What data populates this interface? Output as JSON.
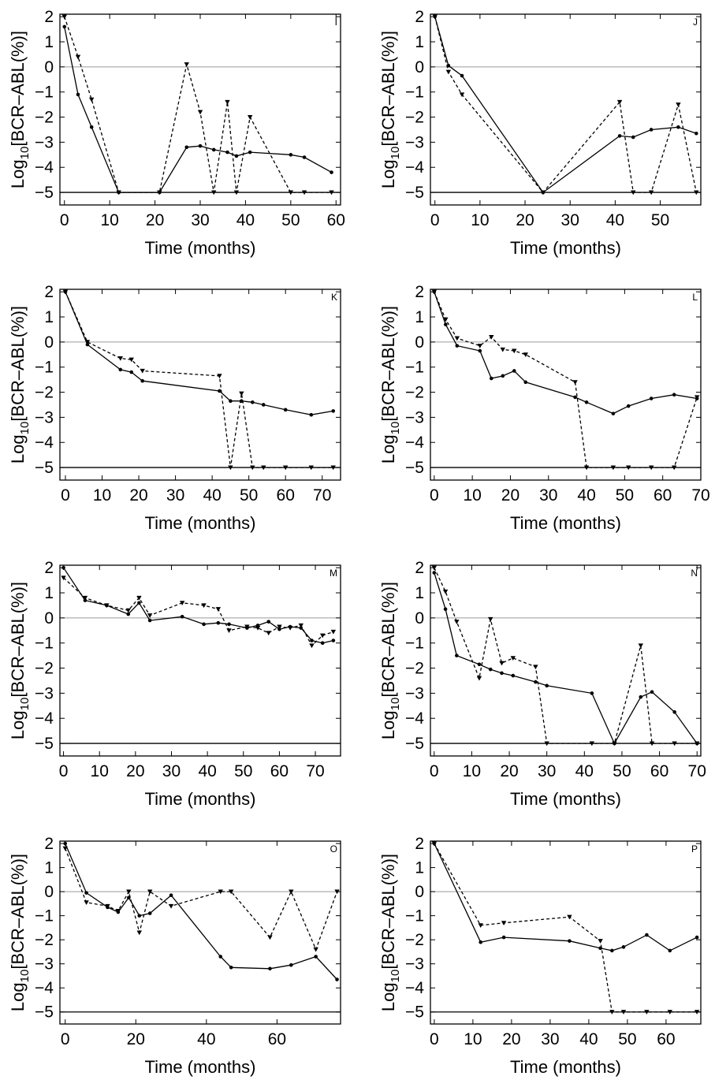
{
  "chart_data": [
    {
      "panel": "I",
      "type": "line",
      "xlabel": "Time (months)",
      "ylabel_main": "Log",
      "ylabel_sub": "10",
      "ylabel_rest": "[BCR–ABL(%)]",
      "xlim": [
        -1,
        61
      ],
      "ylim": [
        -5.5,
        2.1
      ],
      "xticks": [
        0,
        10,
        20,
        30,
        40,
        50,
        60
      ],
      "yticks": [
        2,
        1,
        0,
        -1,
        -2,
        -3,
        -4,
        -5
      ],
      "reference_lines": [
        0,
        -5
      ],
      "series": [
        {
          "style": "solid",
          "marker": "dot",
          "x": [
            0,
            3,
            6,
            12,
            21,
            27,
            30,
            33,
            36,
            38,
            41,
            50,
            53,
            59
          ],
          "y": [
            1.6,
            -1.1,
            -2.4,
            -5,
            -5,
            -3.2,
            -3.15,
            -3.3,
            -3.4,
            -3.55,
            -3.4,
            -3.5,
            -3.6,
            -4.2
          ]
        },
        {
          "style": "dashed",
          "marker": "triangle",
          "x": [
            0,
            3,
            6,
            12,
            21,
            27,
            30,
            33,
            36,
            38,
            41,
            50,
            53,
            59
          ],
          "y": [
            2,
            0.4,
            -1.3,
            -5,
            -5,
            0.1,
            -1.8,
            -5,
            -1.4,
            -5,
            -2,
            -5,
            -5,
            -5
          ]
        }
      ]
    },
    {
      "panel": "J",
      "type": "line",
      "xlabel": "Time (months)",
      "ylabel_main": "Log",
      "ylabel_sub": "10",
      "ylabel_rest": "[BCR–ABL(%)]",
      "xlim": [
        -1,
        59
      ],
      "ylim": [
        -5.5,
        2.1
      ],
      "xticks": [
        0,
        10,
        20,
        30,
        40,
        50
      ],
      "yticks": [
        2,
        1,
        0,
        -1,
        -2,
        -3,
        -4,
        -5
      ],
      "reference_lines": [
        0,
        -5
      ],
      "series": [
        {
          "style": "solid",
          "marker": "dot",
          "x": [
            0,
            3,
            6,
            24,
            41,
            44,
            48,
            54,
            58
          ],
          "y": [
            2,
            0.05,
            -0.35,
            -5,
            -2.75,
            -2.8,
            -2.5,
            -2.4,
            -2.65
          ]
        },
        {
          "style": "dashed",
          "marker": "triangle",
          "x": [
            0,
            3,
            6,
            24,
            41,
            44,
            48,
            54,
            58
          ],
          "y": [
            2,
            -0.2,
            -1.1,
            -5,
            -1.4,
            -5,
            -5,
            -1.5,
            -5
          ]
        }
      ]
    },
    {
      "panel": "K",
      "type": "line",
      "xlabel": "Time (months)",
      "ylabel_main": "Log",
      "ylabel_sub": "10",
      "ylabel_rest": "[BCR–ABL(%)]",
      "xlim": [
        -1.5,
        75
      ],
      "ylim": [
        -5.5,
        2.1
      ],
      "xticks": [
        0,
        10,
        20,
        30,
        40,
        50,
        60,
        70
      ],
      "yticks": [
        2,
        1,
        0,
        -1,
        -2,
        -3,
        -4,
        -5
      ],
      "reference_lines": [
        0,
        -5
      ],
      "series": [
        {
          "style": "solid",
          "marker": "dot",
          "x": [
            0,
            6,
            15,
            18,
            21,
            42,
            45,
            48,
            51,
            54,
            60,
            67,
            73
          ],
          "y": [
            2,
            -0.1,
            -1.1,
            -1.2,
            -1.55,
            -1.95,
            -2.35,
            -2.35,
            -2.4,
            -2.5,
            -2.7,
            -2.9,
            -2.75
          ]
        },
        {
          "style": "dashed",
          "marker": "triangle",
          "x": [
            0,
            6,
            15,
            18,
            21,
            42,
            45,
            48,
            51,
            54,
            60,
            67,
            73
          ],
          "y": [
            2,
            0,
            -0.65,
            -0.7,
            -1.15,
            -1.35,
            -5,
            -2.05,
            -5,
            -5,
            -5,
            -5,
            -5
          ]
        }
      ]
    },
    {
      "panel": "L",
      "type": "line",
      "xlabel": "Time (months)",
      "ylabel_main": "Log",
      "ylabel_sub": "10",
      "ylabel_rest": "[BCR–ABL(%)]",
      "xlim": [
        -1,
        70
      ],
      "ylim": [
        -5.5,
        2.1
      ],
      "xticks": [
        0,
        10,
        20,
        30,
        40,
        50,
        60,
        70
      ],
      "yticks": [
        2,
        1,
        0,
        -1,
        -2,
        -3,
        -4,
        -5
      ],
      "reference_lines": [
        0,
        -5
      ],
      "series": [
        {
          "style": "solid",
          "marker": "dot",
          "x": [
            0,
            3,
            6,
            12,
            15,
            18,
            21,
            24,
            37,
            40,
            47,
            51,
            57,
            63,
            69
          ],
          "y": [
            2,
            0.7,
            -0.15,
            -0.35,
            -1.45,
            -1.35,
            -1.15,
            -1.6,
            -2.2,
            -2.4,
            -2.85,
            -2.55,
            -2.25,
            -2.1,
            -2.25
          ]
        },
        {
          "style": "dashed",
          "marker": "triangle",
          "x": [
            0,
            3,
            6,
            12,
            15,
            18,
            21,
            24,
            37,
            40,
            47,
            51,
            57,
            63,
            69
          ],
          "y": [
            2,
            0.9,
            0.15,
            -0.15,
            0.2,
            -0.3,
            -0.35,
            -0.5,
            -1.6,
            -5,
            -5,
            -5,
            -5,
            -5,
            -2.2
          ]
        }
      ]
    },
    {
      "panel": "M",
      "type": "line",
      "xlabel": "Time (months)",
      "ylabel_main": "Log",
      "ylabel_sub": "10",
      "ylabel_rest": "[BCR–ABL(%)]",
      "xlim": [
        -1,
        77
      ],
      "ylim": [
        -5.5,
        2.1
      ],
      "xticks": [
        0,
        10,
        20,
        30,
        40,
        50,
        60,
        70
      ],
      "yticks": [
        2,
        1,
        0,
        -1,
        -2,
        -3,
        -4,
        -5
      ],
      "reference_lines": [
        0,
        -5
      ],
      "series": [
        {
          "style": "solid",
          "marker": "dot",
          "x": [
            0,
            6,
            12,
            18,
            21,
            24,
            33,
            39,
            43,
            46,
            51,
            54,
            57,
            60,
            63,
            66,
            69,
            72,
            75
          ],
          "y": [
            2,
            0.7,
            0.5,
            0.15,
            0.6,
            -0.1,
            0.05,
            -0.25,
            -0.2,
            -0.25,
            -0.4,
            -0.3,
            -0.15,
            -0.45,
            -0.35,
            -0.4,
            -0.9,
            -1,
            -0.9
          ]
        },
        {
          "style": "dashed",
          "marker": "triangle",
          "x": [
            0,
            6,
            12,
            18,
            21,
            24,
            33,
            39,
            43,
            46,
            51,
            54,
            57,
            60,
            63,
            66,
            69,
            72,
            75
          ],
          "y": [
            1.6,
            0.8,
            0.5,
            0.3,
            0.8,
            0.1,
            0.6,
            0.5,
            0.35,
            -0.5,
            -0.35,
            -0.4,
            -0.6,
            -0.35,
            -0.4,
            -0.3,
            -1.1,
            -0.7,
            -0.55
          ]
        }
      ]
    },
    {
      "panel": "N",
      "type": "line",
      "xlabel": "Time (months)",
      "ylabel_main": "Log",
      "ylabel_sub": "10",
      "ylabel_rest": "[BCR–ABL(%)]",
      "xlim": [
        -1,
        71
      ],
      "ylim": [
        -5.5,
        2.1
      ],
      "xticks": [
        0,
        10,
        20,
        30,
        40,
        50,
        60,
        70
      ],
      "yticks": [
        2,
        1,
        0,
        -1,
        -2,
        -3,
        -4,
        -5
      ],
      "reference_lines": [
        0,
        -5
      ],
      "series": [
        {
          "style": "solid",
          "marker": "dot",
          "x": [
            0,
            3,
            6,
            12,
            15,
            18,
            21,
            27,
            30,
            42,
            48,
            55,
            58,
            64,
            70
          ],
          "y": [
            1.8,
            0.35,
            -1.5,
            -1.85,
            -2.05,
            -2.2,
            -2.3,
            -2.55,
            -2.7,
            -3,
            -5,
            -3.15,
            -2.95,
            -3.75,
            -5
          ]
        },
        {
          "style": "dashed",
          "marker": "triangle",
          "x": [
            0,
            3,
            6,
            12,
            15,
            18,
            21,
            27,
            30,
            42,
            48,
            55,
            58,
            64,
            70
          ],
          "y": [
            2,
            1.05,
            -0.15,
            -2.4,
            -0.05,
            -1.8,
            -1.6,
            -1.95,
            -5,
            -5,
            -5,
            -1.1,
            -5,
            -5,
            -5
          ]
        }
      ]
    },
    {
      "panel": "O",
      "type": "line",
      "xlabel": "Time (months)",
      "ylabel_main": "Log",
      "ylabel_sub": "10",
      "ylabel_rest": "[BCR–ABL(%)]",
      "xlim": [
        -1.5,
        78
      ],
      "ylim": [
        -5.5,
        2.1
      ],
      "xticks": [
        0,
        20,
        40,
        60
      ],
      "yticks": [
        2,
        1,
        0,
        -1,
        -2,
        -3,
        -4,
        -5
      ],
      "reference_lines": [
        0,
        -5
      ],
      "series": [
        {
          "style": "solid",
          "marker": "dot",
          "x": [
            0,
            6,
            12,
            15,
            18,
            21,
            24,
            30,
            44,
            47,
            58,
            64,
            71,
            77
          ],
          "y": [
            2,
            -0.05,
            -0.65,
            -0.85,
            -0.25,
            -1,
            -0.9,
            -0.15,
            -2.7,
            -3.15,
            -3.2,
            -3.05,
            -2.7,
            -3.65
          ]
        },
        {
          "style": "dashed",
          "marker": "triangle",
          "x": [
            0,
            6,
            12,
            15,
            18,
            21,
            24,
            30,
            44,
            47,
            58,
            64,
            71,
            77
          ],
          "y": [
            1.8,
            -0.45,
            -0.6,
            -0.8,
            0,
            -1.7,
            0,
            -0.6,
            0,
            0,
            -1.9,
            0,
            -2.4,
            0
          ]
        }
      ]
    },
    {
      "panel": "P",
      "type": "line",
      "xlabel": "Time (months)",
      "ylabel_main": "Log",
      "ylabel_sub": "10",
      "ylabel_rest": "[BCR–ABL(%)]",
      "xlim": [
        -1,
        69
      ],
      "ylim": [
        -5.5,
        2.1
      ],
      "xticks": [
        0,
        10,
        20,
        30,
        40,
        50,
        60
      ],
      "yticks": [
        2,
        1,
        0,
        -1,
        -2,
        -3,
        -4,
        -5
      ],
      "reference_lines": [
        0,
        -5
      ],
      "series": [
        {
          "style": "solid",
          "marker": "dot",
          "x": [
            0,
            12,
            18,
            35,
            43,
            46,
            49,
            55,
            61,
            68
          ],
          "y": [
            2,
            -2.1,
            -1.9,
            -2.05,
            -2.35,
            -2.45,
            -2.3,
            -1.8,
            -2.45,
            -1.9
          ]
        },
        {
          "style": "dashed",
          "marker": "triangle",
          "x": [
            0,
            12,
            18,
            35,
            43,
            46,
            49,
            55,
            61,
            68
          ],
          "y": [
            2,
            -1.4,
            -1.3,
            -1.05,
            -2.05,
            -5,
            -5,
            -5,
            -5,
            -5
          ]
        }
      ]
    }
  ]
}
